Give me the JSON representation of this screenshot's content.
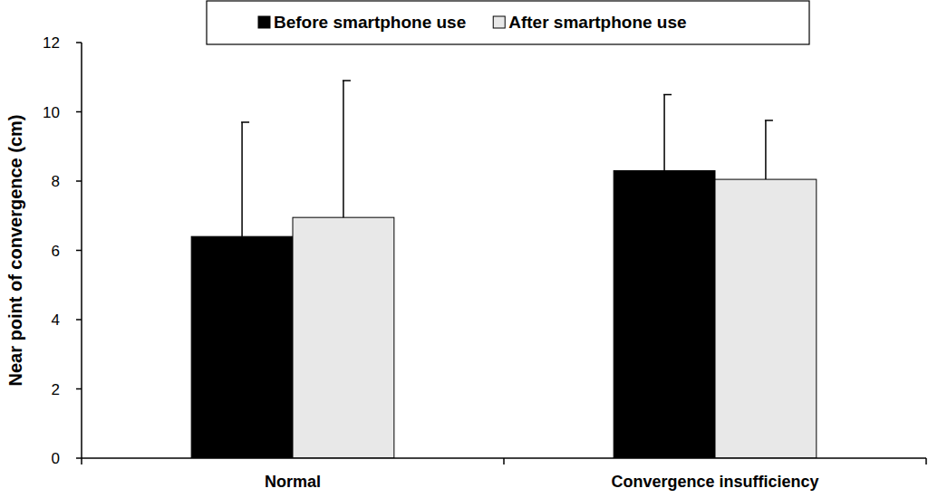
{
  "chart_data": {
    "type": "bar",
    "y_label": "Near point of convergence (cm)",
    "categories": [
      "Normal",
      "Convergence insufficiency"
    ],
    "series": [
      {
        "name": "Before smartphone use",
        "color": "#000000",
        "values": [
          6.4,
          8.3
        ],
        "errors": [
          3.3,
          2.2
        ]
      },
      {
        "name": "After smartphone use",
        "color": "#e8e8e8",
        "values": [
          6.95,
          8.05
        ],
        "errors": [
          3.95,
          1.7
        ]
      }
    ],
    "ylim": [
      0,
      12
    ],
    "yticks": [
      0,
      2,
      4,
      6,
      8,
      10,
      12
    ],
    "grid": false,
    "legend": "top"
  }
}
